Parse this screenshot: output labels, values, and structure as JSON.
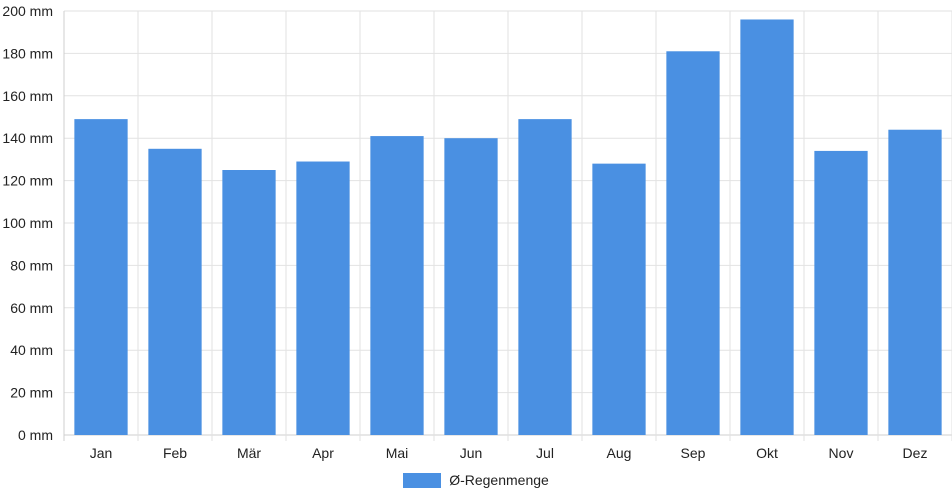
{
  "chart_data": {
    "type": "bar",
    "categories": [
      "Jan",
      "Feb",
      "Mär",
      "Apr",
      "Mai",
      "Jun",
      "Jul",
      "Aug",
      "Sep",
      "Okt",
      "Nov",
      "Dez"
    ],
    "series": [
      {
        "name": "Ø-Regenmenge",
        "values": [
          149,
          135,
          125,
          129,
          141,
          140,
          149,
          128,
          181,
          196,
          134,
          144
        ]
      }
    ],
    "yticks": [
      0,
      20,
      40,
      60,
      80,
      100,
      120,
      140,
      160,
      180,
      200
    ],
    "ytick_labels": [
      "0 mm",
      "20 mm",
      "40 mm",
      "60 mm",
      "80 mm",
      "100 mm",
      "120 mm",
      "140 mm",
      "160 mm",
      "180 mm",
      "200 mm"
    ],
    "ylim": [
      0,
      200
    ],
    "grid": true,
    "legend_position": "bottom-center",
    "colors": {
      "bar": "#4a90e2",
      "grid": "#e2e2e2",
      "axis": "#cfcfcf"
    }
  }
}
